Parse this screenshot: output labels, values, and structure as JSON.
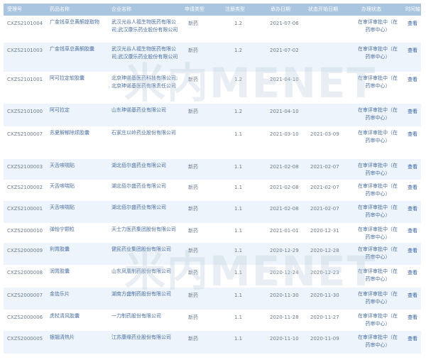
{
  "headers": [
    "受理号",
    "药品名称",
    "企业名称",
    "申请类型",
    "注册类型",
    "承办日期",
    "状态开始日期",
    "办理状态",
    "时间轴"
  ],
  "rows": [
    {
      "no": "CXZS2101004",
      "drug": "广金钱草总黄酮提取物",
      "company": "武汉光谷人福生物医药有限公司;武汉康乐药业股份有限公司",
      "type": "新药",
      "reg": "1.2",
      "date": "2021-07-06",
      "start": "",
      "status": "在审评审批中（在药审中心）",
      "view": "查看"
    },
    {
      "no": "CXZS2101003",
      "drug": "广金钱草总黄酮胶囊",
      "company": "武汉光谷人福生物医药有限公司;武汉康乐药业股份有限公司",
      "type": "新药",
      "reg": "1.2",
      "date": "2021-07-02",
      "start": "",
      "status": "在审评审批中（在药审中心）",
      "view": "查看"
    },
    {
      "no": "CXZS2101001",
      "drug": "阿可拉定软胶囊",
      "company": "北京珅诺基医药科技有限公司;北京珅诺基医药有限责任公司",
      "type": "新药",
      "reg": "1.2",
      "date": "2021-04-10",
      "start": "",
      "status": "在审评审批中（在药审中心）",
      "view": "查看"
    },
    {
      "no": "CXZS2101000",
      "drug": "阿可拉定",
      "company": "山东珅诺基药业有限公司",
      "type": "新药",
      "reg": "1.2",
      "date": "2021-04-10",
      "start": "",
      "status": "在审评审批中（在药审中心）",
      "view": "查看"
    },
    {
      "no": "CXZS2100007",
      "drug": "苏夏解郁除烦胶囊",
      "company": "石家庄以岭药业股份有限公司",
      "type": "",
      "reg": "1.1",
      "date": "2021-03-10",
      "start": "2021-03-09",
      "status": "在审评审批中（在药审中心）",
      "view": "查看"
    },
    {
      "no": "CXZS2100003",
      "drug": "天舌咳喘贴",
      "company": "湖北佰尔盛药业有限公司",
      "type": "新药",
      "reg": "1.1",
      "date": "2021-02-08",
      "start": "2021-02-07",
      "status": "在审评审批中（在药审中心）",
      "view": "查看"
    },
    {
      "no": "CXZS2100002",
      "drug": "天舌咳喘贴",
      "company": "湖北佰尔盛药业有限公司",
      "type": "新药",
      "reg": "1.1",
      "date": "2021-02-08",
      "start": "2021-02-07",
      "status": "在审评审批中（在药审中心）",
      "view": "查看"
    },
    {
      "no": "CXZS2100001",
      "drug": "天舌咳喘贴",
      "company": "湖北佰尔盛药业有限公司",
      "type": "新药",
      "reg": "1.1",
      "date": "2021-02-08",
      "start": "2021-02-07",
      "status": "在审评审批中（在药审中心）",
      "view": "查看"
    },
    {
      "no": "CXZS2000010",
      "drug": "弹怡宁颗粒",
      "company": "天士力医药集团股份有限公司",
      "type": "新药",
      "reg": "1.1",
      "date": "2021-01-01",
      "start": "2020-12-31",
      "status": "在审评审批中（在药审中心）",
      "view": "查看"
    },
    {
      "no": "CXZS2000009",
      "drug": "利胃胶囊",
      "company": "健民药业集团股份有限公司",
      "type": "新药",
      "reg": "1.1",
      "date": "2020-12-29",
      "start": "2020-12-28",
      "status": "在审评审批中（在药审中心）",
      "view": "查看"
    },
    {
      "no": "CXZS2000008",
      "drug": "润胃胶囊",
      "company": "山东凤凰制药股份有限公司",
      "type": "新药",
      "reg": "1.1",
      "date": "2020-12-24",
      "start": "2020-12-23",
      "status": "在审评审批中（在药审中心）",
      "view": "查看"
    },
    {
      "no": "CXZS2000007",
      "drug": "金齿乐片",
      "company": "湖南方盛制药股份有限公司",
      "type": "新药",
      "reg": "1.1",
      "date": "2020-11-30",
      "start": "2020-11-30",
      "status": "在审评审批中（在药审中心）",
      "view": "查看"
    },
    {
      "no": "CXZS2000006",
      "drug": "虎杖清风胶囊",
      "company": "一力制药股份有限公司",
      "type": "新药",
      "reg": "1.1",
      "date": "2020-11-28",
      "start": "2020-11-27",
      "status": "在审评审批中（在药审中心）",
      "view": "查看"
    },
    {
      "no": "CXZS2000005",
      "drug": "银翘清热片",
      "company": "江苏康缘药业股份有限公司",
      "type": "新药",
      "reg": "1.1",
      "date": "2020-11-10",
      "start": "2020-11-09",
      "status": "在审评审批中（在药审中心）",
      "view": "查看"
    }
  ],
  "watermark": "米内网 MENET"
}
